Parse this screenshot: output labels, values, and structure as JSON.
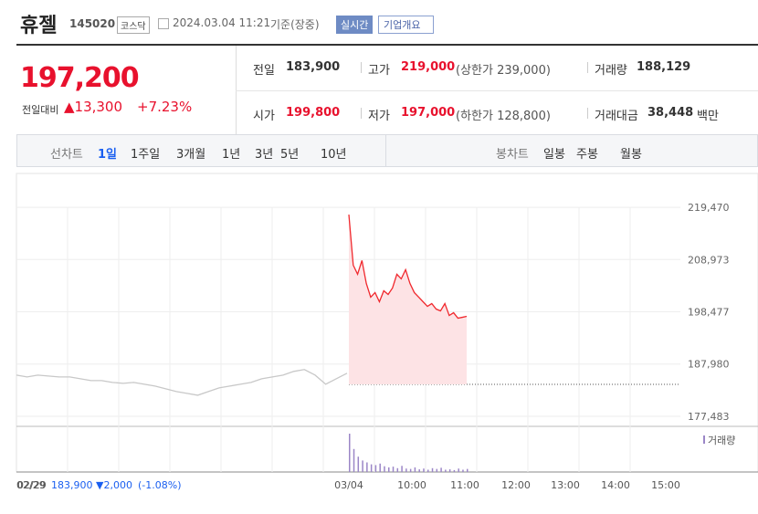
{
  "header": {
    "name": "휴젤",
    "code": "145020",
    "market": "코스닥",
    "time": "2024.03.04 11:21",
    "basis": "기준(장중)",
    "realtime": "실시간",
    "company": "기업개요"
  },
  "quote": {
    "price": "197,200",
    "change_label": "전일대비",
    "change": "▲13,300",
    "rate": "+7.23%"
  },
  "info": [
    [
      {
        "label": "전일",
        "value": "183,900"
      },
      {
        "label": "고가",
        "value": "219,000",
        "note": "(상한가 239,000)"
      },
      {
        "label": "거래량",
        "value": "188,129"
      }
    ],
    [
      {
        "label": "시가",
        "value": "199,800"
      },
      {
        "label": "저가",
        "value": "197,000",
        "note": "(하한가 128,800)"
      },
      {
        "label": "거래대금",
        "value": "38,448",
        "unit": "백만"
      }
    ]
  ],
  "tabs": {
    "line_label": "선차트",
    "line": [
      "1일",
      "1주일",
      "3개월",
      "1년",
      "3년",
      "5년",
      "10년"
    ],
    "candle_label": "봉차트",
    "candle": [
      "일봉",
      "주봉",
      "월봉"
    ]
  },
  "chart_data": {
    "type": "line",
    "ylim": [
      175825,
      224440
    ],
    "yticks": [
      {
        "value": 219470,
        "label": "219,470"
      },
      {
        "value": 208973,
        "label": "208,973"
      },
      {
        "value": 198477,
        "label": "198,477"
      },
      {
        "value": 187980,
        "label": "187,980"
      },
      {
        "value": 177483,
        "label": "177,483"
      }
    ],
    "xticks": [
      "02/29",
      "03/04",
      "10:00",
      "11:00",
      "12:00",
      "13:00",
      "14:00",
      "15:00"
    ],
    "baseline": 183900,
    "series": [
      {
        "name": "02/29",
        "color": "#c8c8c8",
        "values": [
          185760,
          185390,
          185760,
          185575,
          185390,
          185390,
          185025,
          184655,
          184655,
          184290,
          184105,
          184290,
          183920,
          183550,
          183000,
          182445,
          182080,
          181710,
          182445,
          183180,
          183550,
          183920,
          184290,
          185025,
          185390,
          185760,
          186500,
          186870,
          185760,
          183920,
          185025,
          186130
        ]
      },
      {
        "name": "03/04",
        "color": "#f0282d",
        "values": [
          218000,
          207865,
          206025,
          208785,
          204180,
          201420,
          202340,
          200500,
          202710,
          201970,
          203260,
          206025,
          205100,
          206945,
          204180,
          202340,
          201420,
          200500,
          199575,
          200130,
          199025,
          198660,
          200130,
          197735,
          198290,
          197185,
          197370,
          197555
        ]
      }
    ],
    "volume": {
      "name": "거래량",
      "color": "#9b86c7",
      "values": [
        100,
        60,
        40,
        30,
        25,
        20,
        18,
        22,
        15,
        12,
        14,
        10,
        16,
        9,
        8,
        12,
        7,
        9,
        6,
        10,
        8,
        11,
        6,
        7,
        5,
        9,
        6,
        8
      ]
    },
    "prev": {
      "date": "02/29",
      "price": "183,900",
      "change": "▼2,000",
      "rate": "(-1.08%)"
    }
  }
}
